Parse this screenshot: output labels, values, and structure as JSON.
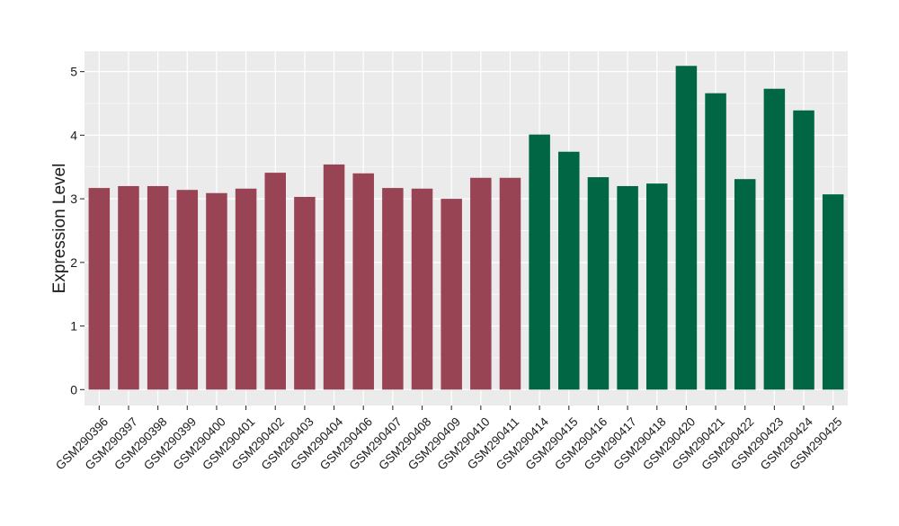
{
  "chart_data": {
    "type": "bar",
    "title": "",
    "xlabel": "",
    "ylabel": "Expression Level",
    "ylim": [
      -0.25,
      5.32
    ],
    "yticks": [
      0,
      1,
      2,
      3,
      4,
      5
    ],
    "ytick_labels": [
      "0",
      "1",
      "2",
      "3",
      "4",
      "5"
    ],
    "grid": true,
    "legend": "none",
    "categories": [
      "GSM290396",
      "GSM290397",
      "GSM290398",
      "GSM290399",
      "GSM290400",
      "GSM290401",
      "GSM290402",
      "GSM290403",
      "GSM290404",
      "GSM290406",
      "GSM290407",
      "GSM290408",
      "GSM290409",
      "GSM290410",
      "GSM290411",
      "GSM290414",
      "GSM290415",
      "GSM290416",
      "GSM290417",
      "GSM290418",
      "GSM290420",
      "GSM290421",
      "GSM290422",
      "GSM290423",
      "GSM290424",
      "GSM290425"
    ],
    "values": [
      3.17,
      3.2,
      3.2,
      3.14,
      3.09,
      3.16,
      3.41,
      3.03,
      3.54,
      3.4,
      3.17,
      3.16,
      3.0,
      3.33,
      3.33,
      4.01,
      3.74,
      3.34,
      3.2,
      3.24,
      5.09,
      4.66,
      3.31,
      4.73,
      4.39,
      3.07
    ],
    "groups": [
      "a",
      "a",
      "a",
      "a",
      "a",
      "a",
      "a",
      "a",
      "a",
      "a",
      "a",
      "a",
      "a",
      "a",
      "a",
      "b",
      "b",
      "b",
      "b",
      "b",
      "b",
      "b",
      "b",
      "b",
      "b",
      "b"
    ],
    "group_colors": {
      "a": "#994455",
      "b": "#006644"
    },
    "panel_background": "#ebebeb",
    "grid_color": "#ffffff"
  }
}
